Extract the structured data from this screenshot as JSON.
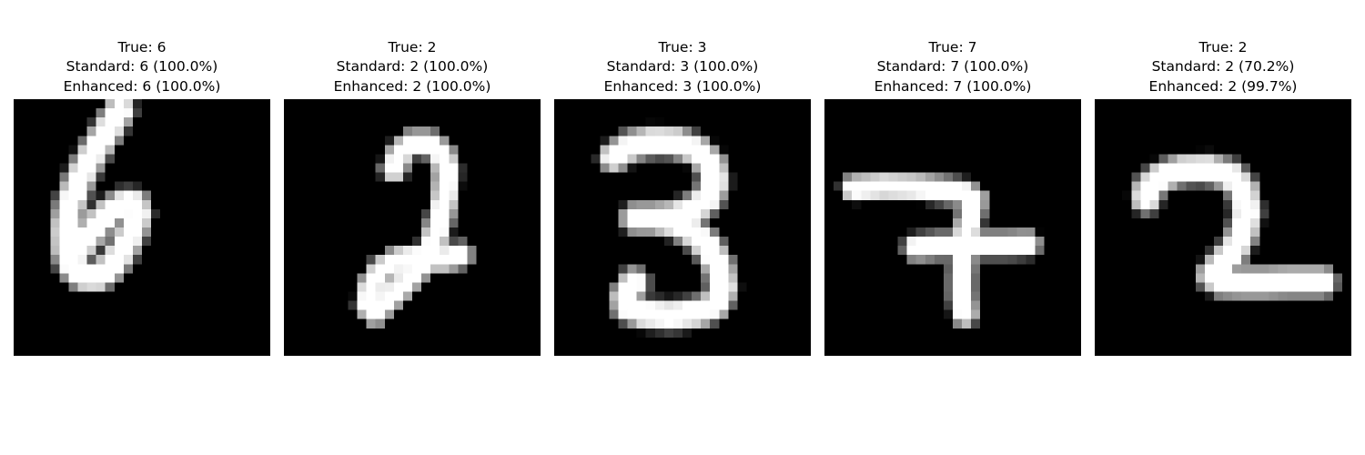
{
  "figure": {
    "panels": [
      {
        "true_label": "True: 6",
        "standard_prediction": "Standard: 6 (100.0%)",
        "enhanced_prediction": "Enhanced: 6 (100.0%)",
        "image": {
          "grid": "28x28",
          "colormap": "gray",
          "strokes": [
            [
              [
                11.6,
                1.2
              ],
              [
                10.2,
                3.5
              ],
              [
                8.6,
                6.0
              ],
              [
                7.2,
                8.7
              ],
              [
                6.2,
                11.4
              ],
              [
                5.7,
                14.0
              ],
              [
                5.8,
                16.4
              ],
              [
                6.4,
                18.2
              ],
              [
                7.6,
                19.3
              ],
              [
                9.1,
                19.4
              ],
              [
                10.7,
                18.2
              ],
              [
                12.0,
                16.3
              ],
              [
                13.0,
                14.2
              ],
              [
                13.5,
                12.6
              ],
              [
                13.2,
                11.5
              ],
              [
                12.1,
                11.4
              ],
              [
                10.5,
                12.3
              ],
              [
                9.0,
                13.8
              ],
              [
                7.8,
                15.4
              ],
              [
                6.8,
                16.8
              ]
            ]
          ],
          "width": 2.2
        }
      },
      {
        "true_label": "True: 2",
        "standard_prediction": "Standard: 2 (100.0%)",
        "enhanced_prediction": "Enhanced: 2 (100.0%)",
        "image": {
          "grid": "28x28",
          "colormap": "gray",
          "strokes": [
            [
              [
                12.0,
                7.6
              ],
              [
                12.7,
                5.8
              ],
              [
                14.0,
                4.8
              ],
              [
                15.8,
                4.8
              ],
              [
                17.2,
                5.9
              ],
              [
                17.8,
                7.8
              ],
              [
                17.6,
                10.5
              ],
              [
                17.0,
                13.3
              ],
              [
                16.2,
                16.0
              ],
              [
                14.8,
                18.3
              ],
              [
                13.0,
                20.3
              ],
              [
                11.3,
                21.9
              ],
              [
                9.9,
                23.3
              ],
              [
                9.2,
                22.5
              ],
              [
                9.5,
                20.4
              ],
              [
                10.6,
                18.7
              ],
              [
                12.3,
                17.6
              ],
              [
                14.2,
                17.3
              ],
              [
                16.0,
                17.4
              ],
              [
                17.6,
                17.4
              ],
              [
                19.2,
                17.0
              ]
            ]
          ],
          "width": 1.9
        }
      },
      {
        "true_label": "True: 3",
        "standard_prediction": "Standard: 3 (100.0%)",
        "enhanced_prediction": "Enhanced: 3 (100.0%)",
        "image": {
          "grid": "28x28",
          "colormap": "gray",
          "strokes": [
            [
              [
                6.5,
                6.3
              ],
              [
                8.4,
                5.1
              ],
              [
                10.8,
                4.6
              ],
              [
                13.3,
                4.7
              ],
              [
                15.6,
                5.6
              ],
              [
                17.1,
                7.1
              ],
              [
                17.5,
                9.0
              ],
              [
                16.8,
                10.8
              ],
              [
                15.1,
                12.1
              ],
              [
                13.0,
                12.8
              ],
              [
                10.6,
                13.0
              ],
              [
                8.9,
                13.0
              ]
            ],
            [
              [
                10.6,
                13.0
              ],
              [
                12.8,
                13.4
              ],
              [
                15.0,
                14.4
              ],
              [
                16.8,
                16.1
              ],
              [
                18.0,
                18.3
              ],
              [
                18.4,
                20.6
              ],
              [
                17.6,
                22.4
              ],
              [
                15.7,
                23.3
              ],
              [
                12.8,
                23.6
              ],
              [
                9.8,
                23.4
              ],
              [
                8.0,
                22.7
              ],
              [
                7.8,
                21.5
              ],
              [
                8.7,
                20.0
              ]
            ]
          ],
          "width": 2.2
        }
      },
      {
        "true_label": "True: 7",
        "standard_prediction": "Standard: 7 (100.0%)",
        "enhanced_prediction": "Enhanced: 7 (100.0%)",
        "image": {
          "grid": "28x28",
          "colormap": "gray",
          "strokes": [
            [
              [
                3.2,
                9.7
              ],
              [
                6.5,
                9.5
              ],
              [
                10.0,
                9.6
              ],
              [
                13.0,
                9.9
              ],
              [
                15.0,
                10.2
              ],
              [
                16.3,
                10.9
              ],
              [
                16.0,
                12.5
              ],
              [
                15.5,
                14.5
              ],
              [
                15.2,
                16.8
              ],
              [
                15.0,
                19.0
              ],
              [
                15.0,
                21.3
              ],
              [
                15.3,
                23.4
              ]
            ],
            [
              [
                10.0,
                16.2
              ],
              [
                12.5,
                16.0
              ],
              [
                15.0,
                16.0
              ],
              [
                17.5,
                15.9
              ],
              [
                20.0,
                15.9
              ],
              [
                22.2,
                15.8
              ]
            ]
          ],
          "width": 1.9
        }
      },
      {
        "true_label": "True: 2",
        "standard_prediction": "Standard: 2 (70.2%)",
        "enhanced_prediction": "Enhanced: 2 (99.7%)",
        "image": {
          "grid": "28x28",
          "colormap": "gray",
          "strokes": [
            [
              [
                5.6,
                10.8
              ],
              [
                5.8,
                9.8
              ],
              [
                7.2,
                8.5
              ],
              [
                9.5,
                7.7
              ],
              [
                12.3,
                7.6
              ],
              [
                14.8,
                8.3
              ],
              [
                16.2,
                9.9
              ],
              [
                16.6,
                12.2
              ],
              [
                16.2,
                14.5
              ],
              [
                15.2,
                16.5
              ],
              [
                13.8,
                18.0
              ],
              [
                12.8,
                19.2
              ],
              [
                13.8,
                19.9
              ],
              [
                16.0,
                20.0
              ],
              [
                18.5,
                20.0
              ],
              [
                21.0,
                19.9
              ],
              [
                24.8,
                19.9
              ]
            ]
          ],
          "width": 2.2
        }
      }
    ]
  }
}
